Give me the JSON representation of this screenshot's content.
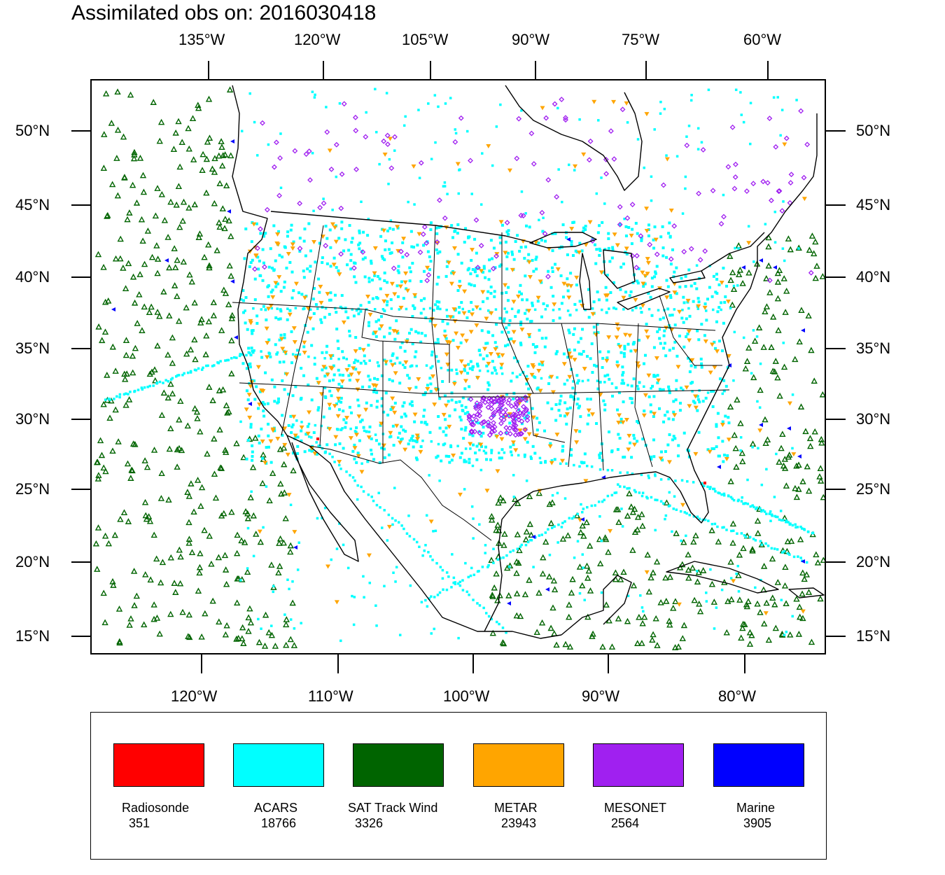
{
  "title": "Assimilated obs on: 2016030418",
  "top_lon_labels": [
    "135°W",
    "120°W",
    "105°W",
    "90°W",
    "75°W",
    "60°W"
  ],
  "bottom_lon_labels": [
    "120°W",
    "110°W",
    "100°W",
    "90°W",
    "80°W"
  ],
  "lat_labels": [
    "50°N",
    "45°N",
    "40°N",
    "35°N",
    "30°N",
    "25°N",
    "20°N",
    "15°N"
  ],
  "legend": [
    {
      "name": "Radiosonde",
      "count": "351",
      "color": "#ff0000"
    },
    {
      "name": "ACARS",
      "count": "18766",
      "color": "#00ffff"
    },
    {
      "name": "SAT Track Wind",
      "count": "3326",
      "color": "#006400"
    },
    {
      "name": "METAR",
      "count": "23943",
      "color": "#ffa500"
    },
    {
      "name": "MESONET",
      "count": "2564",
      "color": "#a020f0"
    },
    {
      "name": "Marine",
      "count": "3905",
      "color": "#0000ff"
    }
  ]
}
